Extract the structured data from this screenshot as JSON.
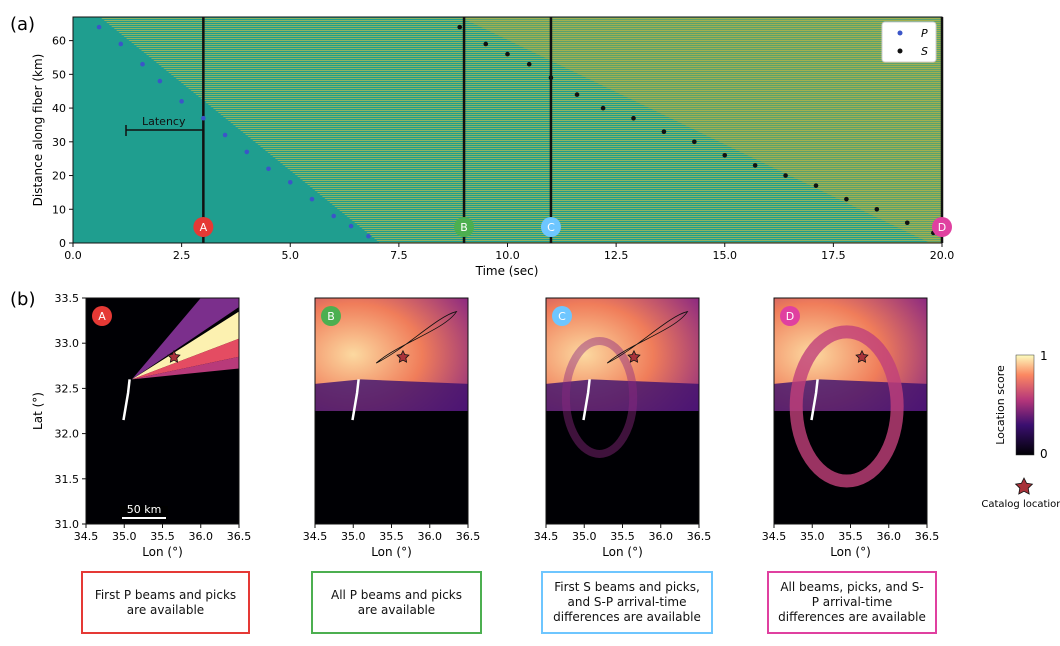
{
  "panel_a": {
    "label": "(a)",
    "xlabel": "Time (sec)",
    "ylabel": "Distance along fiber (km)",
    "xticks": [
      "0.0",
      "2.5",
      "5.0",
      "7.5",
      "10.0",
      "12.5",
      "15.0",
      "17.5",
      "20.0"
    ],
    "yticks": [
      "0",
      "10",
      "20",
      "30",
      "40",
      "50",
      "60"
    ],
    "legend": [
      {
        "symbol": "P",
        "color": "#3b55c8"
      },
      {
        "symbol": "S",
        "color": "#111111"
      }
    ],
    "latency_label": "Latency",
    "markers": [
      {
        "id": "A",
        "time": 3.0,
        "color": "#e53935"
      },
      {
        "id": "B",
        "time": 9.0,
        "color": "#4caf50"
      },
      {
        "id": "C",
        "time": 11.0,
        "color": "#6ec6ff"
      },
      {
        "id": "D",
        "time": 20.0,
        "color": "#e040a0"
      }
    ]
  },
  "panel_b": {
    "label": "(b)",
    "xlabel": "Lon (°)",
    "ylabel": "Lat (°)",
    "xticks": [
      "34.5",
      "35.0",
      "35.5",
      "36.0",
      "36.5"
    ],
    "yticks": [
      "31.0",
      "31.5",
      "32.0",
      "32.5",
      "33.0",
      "33.5"
    ],
    "scalebar": "50 km",
    "colorbar": {
      "label": "Location score",
      "max": "1",
      "min": "0"
    },
    "catalog_label": "Catalog location",
    "catalog_location": {
      "lon": 35.65,
      "lat": 32.85
    },
    "captions": [
      "First P beams and picks are available",
      "All P beams and picks are available",
      "First S beams and picks, and S-P arrival-time differences are available",
      "All beams, picks, and S-P arrival-time differences are available"
    ],
    "caption_colors": [
      "#e53935",
      "#4caf50",
      "#6ec6ff",
      "#e040a0"
    ]
  },
  "chart_data": [
    {
      "type": "scatter",
      "title": "",
      "xlabel": "Time (sec)",
      "ylabel": "Distance along fiber (km)",
      "xlim": [
        0,
        20
      ],
      "ylim": [
        0,
        67
      ],
      "series": [
        {
          "name": "P",
          "x": [
            0.6,
            1.1,
            1.6,
            2.0,
            2.5,
            3.0,
            3.5,
            4.0,
            4.5,
            5.0,
            5.5,
            6.0,
            6.4,
            6.8
          ],
          "y": [
            64,
            59,
            53,
            48,
            42,
            37,
            32,
            27,
            22,
            18,
            13,
            8,
            5,
            2
          ]
        },
        {
          "name": "S",
          "x": [
            8.9,
            9.5,
            10.0,
            10.5,
            11.0,
            11.6,
            12.2,
            12.9,
            13.6,
            14.3,
            15.0,
            15.7,
            16.4,
            17.1,
            17.8,
            18.5,
            19.2,
            19.8
          ],
          "y": [
            64,
            59,
            56,
            53,
            49,
            44,
            40,
            37,
            33,
            30,
            26,
            23,
            20,
            17,
            13,
            10,
            6,
            3
          ]
        }
      ],
      "vlines": [
        3.0,
        9.0,
        11.0,
        20.0
      ]
    },
    {
      "type": "heatmap",
      "title": "A",
      "xlabel": "Lon (°)",
      "ylabel": "Lat (°)",
      "xlim": [
        34.5,
        36.5
      ],
      "ylim": [
        31.0,
        33.5
      ],
      "catalog": {
        "lon": 35.65,
        "lat": 32.85
      }
    },
    {
      "type": "heatmap",
      "title": "B",
      "xlabel": "Lon (°)",
      "ylabel": "Lat (°)",
      "xlim": [
        34.5,
        36.5
      ],
      "ylim": [
        31.0,
        33.5
      ],
      "catalog": {
        "lon": 35.65,
        "lat": 32.85
      }
    },
    {
      "type": "heatmap",
      "title": "C",
      "xlabel": "Lon (°)",
      "ylabel": "Lat (°)",
      "xlim": [
        34.5,
        36.5
      ],
      "ylim": [
        31.0,
        33.5
      ],
      "catalog": {
        "lon": 35.65,
        "lat": 32.85
      }
    },
    {
      "type": "heatmap",
      "title": "D",
      "xlabel": "Lon (°)",
      "ylabel": "Lat (°)",
      "xlim": [
        34.5,
        36.5
      ],
      "ylim": [
        31.0,
        33.5
      ],
      "catalog": {
        "lon": 35.65,
        "lat": 32.85
      }
    }
  ]
}
